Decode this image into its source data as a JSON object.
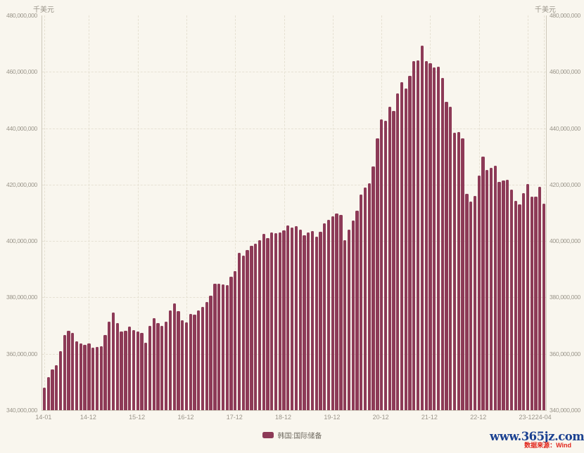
{
  "chart": {
    "unit_left": "千美元",
    "unit_right": "千美元",
    "legend": {
      "label": "韩国:国际储备",
      "swatch_color": "#8d3a57"
    },
    "watermark": {
      "site": "www.365jz.com",
      "site_color": "#1b4191",
      "source": "数据来源：Wind",
      "source_color": "#e1251b"
    }
  },
  "chart_data": {
    "type": "bar",
    "title": "",
    "series_name": "韩国:国际储备",
    "unit": "千美元",
    "frequency": "monthly",
    "start_month": "2014-01",
    "end_month": "2024-04",
    "grid": true,
    "legend_position": "bottom",
    "bar_color": "#8d3a57",
    "background_color": "#f9f6ee",
    "ylim": [
      340000000,
      480000000
    ],
    "y_tick_step": 20000000,
    "y_tick_labels": [
      "480,000,000",
      "460,000,000",
      "440,000,000",
      "420,000,000",
      "400,000,000",
      "380,000,000",
      "360,000,000",
      "340,000,000"
    ],
    "x_ticks": [
      {
        "label": "14-01",
        "month_index": 0
      },
      {
        "label": "14-12",
        "month_index": 11
      },
      {
        "label": "15-12",
        "month_index": 23
      },
      {
        "label": "16-12",
        "month_index": 35
      },
      {
        "label": "17-12",
        "month_index": 47
      },
      {
        "label": "18-12",
        "month_index": 59
      },
      {
        "label": "19-12",
        "month_index": 71
      },
      {
        "label": "20-12",
        "month_index": 83
      },
      {
        "label": "21-12",
        "month_index": 95
      },
      {
        "label": "22-12",
        "month_index": 107
      },
      {
        "label": "23-12",
        "month_index": 119
      },
      {
        "label": "24-04",
        "month_index": 123
      }
    ],
    "values": [
      348030000,
      351800000,
      354350000,
      355850000,
      360910000,
      366550000,
      368030000,
      367530000,
      364410000,
      363660000,
      363100000,
      363590000,
      362240000,
      362420000,
      362750000,
      366640000,
      371390000,
      374750000,
      370820000,
      367940000,
      368140000,
      369640000,
      368460000,
      367960000,
      367330000,
      363810000,
      369850000,
      372550000,
      370910000,
      369930000,
      371380000,
      375460000,
      377780000,
      375170000,
      371990000,
      371100000,
      374040000,
      373910000,
      375320000,
      376570000,
      378460000,
      380570000,
      384840000,
      384840000,
      384670000,
      384460000,
      387250000,
      389270000,
      395750000,
      394750000,
      396750000,
      398420000,
      398980000,
      400300000,
      402450000,
      401130000,
      403000000,
      402750000,
      403120000,
      403690000,
      405510000,
      404670000,
      405330000,
      404030000,
      401970000,
      403070000,
      403430000,
      401480000,
      403260000,
      406330000,
      407460000,
      408820000,
      409650000,
      409170000,
      400210000,
      403980000,
      407310000,
      410750000,
      416530000,
      418940000,
      420550000,
      426450000,
      436380000,
      443100000,
      442730000,
      447560000,
      446130000,
      452310000,
      456460000,
      454110000,
      458680000,
      463930000,
      463970000,
      469210000,
      463910000,
      463120000,
      461530000,
      461770000,
      457810000,
      449300000,
      447710000,
      438280000,
      438610000,
      436430000,
      416770000,
      414010000,
      416100000,
      423160000,
      429970000,
      425290000,
      426070000,
      426680000,
      420980000,
      421450000,
      421820000,
      418300000,
      414120000,
      412870000,
      417080000,
      420150000,
      415770000,
      415730000,
      419250000,
      413260000
    ]
  }
}
